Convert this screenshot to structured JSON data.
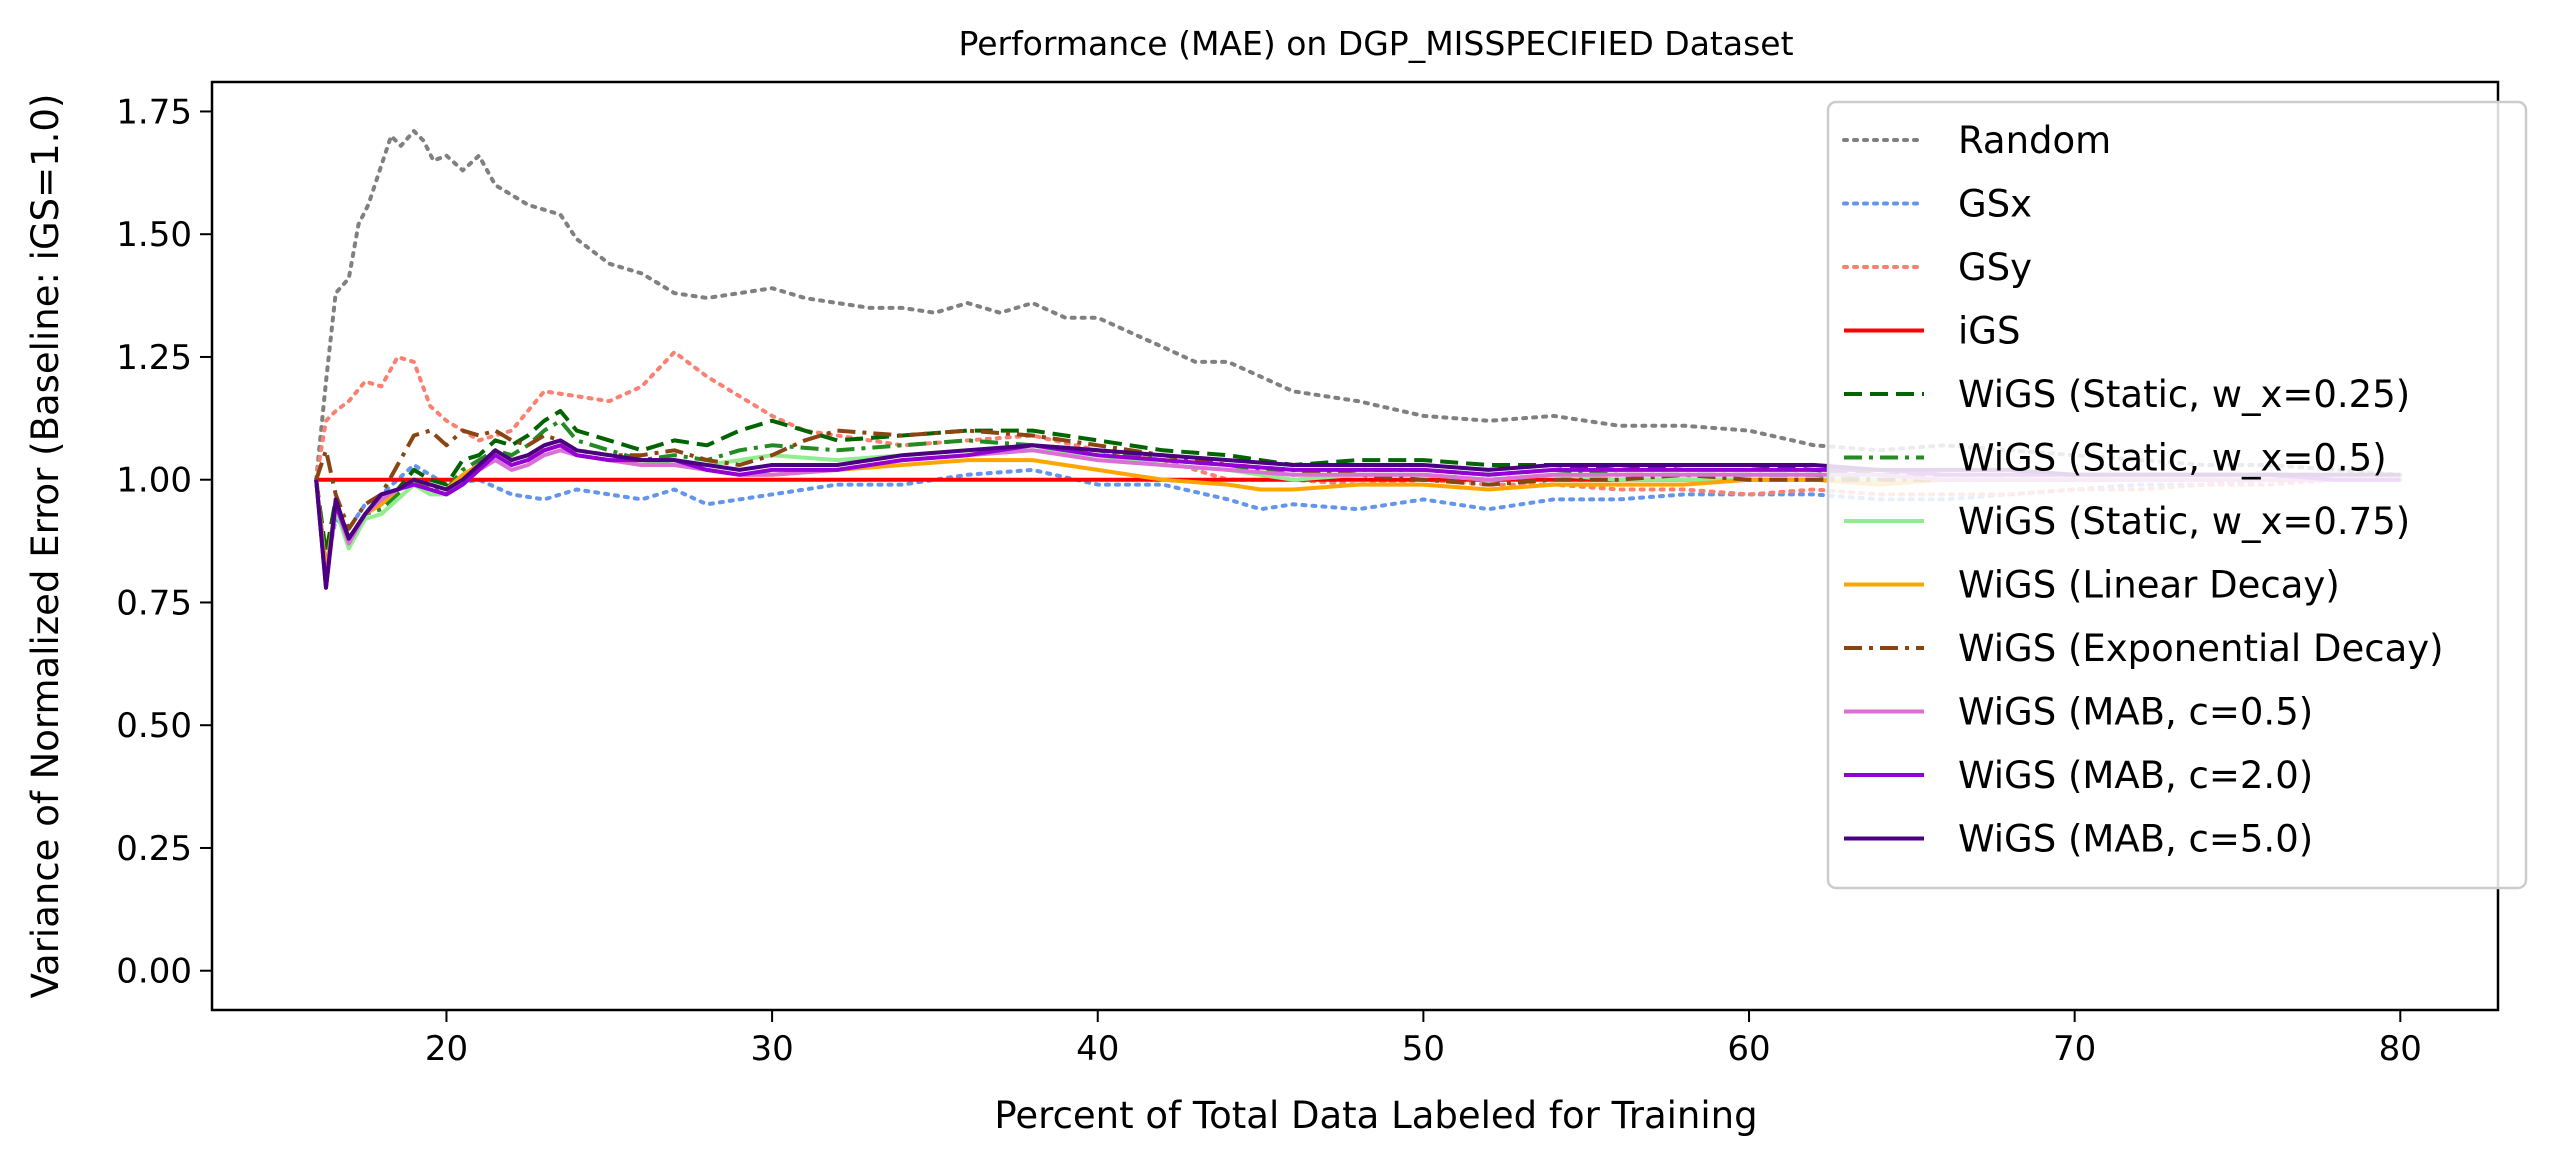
{
  "chart_data": {
    "type": "line",
    "title": "Performance (MAE) on DGP_MISSPECIFIED Dataset",
    "xlabel": "Percent of Total Data Labeled for Training",
    "ylabel": "Variance of Normalized Error (Baseline: iGS=1.0)",
    "xlim": [
      12.8,
      83.0
    ],
    "ylim": [
      -0.08,
      1.81
    ],
    "xticks": [
      20,
      30,
      40,
      50,
      60,
      70,
      80
    ],
    "xtick_labels": [
      "20",
      "30",
      "40",
      "50",
      "60",
      "70",
      "80"
    ],
    "yticks": [
      0.0,
      0.25,
      0.5,
      0.75,
      1.0,
      1.25,
      1.5,
      1.75
    ],
    "ytick_labels": [
      "0.00",
      "0.25",
      "0.50",
      "0.75",
      "1.00",
      "1.25",
      "1.50",
      "1.75"
    ],
    "grid": false,
    "legend_position": "top-right",
    "series": [
      {
        "name": "Random",
        "color": "#808080",
        "dash": "dotted",
        "x": [
          16,
          16.3,
          16.6,
          17,
          17.3,
          17.6,
          18,
          18.3,
          18.6,
          19,
          19.3,
          19.6,
          20,
          20.5,
          21,
          21.5,
          22,
          22.5,
          23,
          23.5,
          24,
          25,
          26,
          27,
          28,
          29,
          30,
          31,
          32,
          33,
          34,
          35,
          36,
          37,
          38,
          39,
          40,
          41,
          42,
          43,
          44,
          45,
          46,
          48,
          50,
          52,
          54,
          56,
          58,
          60,
          62,
          64,
          66,
          68,
          70,
          72,
          74,
          76,
          78,
          80
        ],
        "y": [
          1.0,
          1.2,
          1.38,
          1.41,
          1.52,
          1.56,
          1.64,
          1.7,
          1.68,
          1.71,
          1.69,
          1.65,
          1.66,
          1.63,
          1.66,
          1.6,
          1.58,
          1.56,
          1.55,
          1.54,
          1.49,
          1.44,
          1.42,
          1.38,
          1.37,
          1.38,
          1.39,
          1.37,
          1.36,
          1.35,
          1.35,
          1.34,
          1.36,
          1.34,
          1.36,
          1.33,
          1.33,
          1.3,
          1.27,
          1.24,
          1.24,
          1.21,
          1.18,
          1.16,
          1.13,
          1.12,
          1.13,
          1.11,
          1.11,
          1.1,
          1.07,
          1.06,
          1.07,
          1.06,
          1.05,
          1.04,
          1.03,
          1.03,
          1.02,
          1.01
        ]
      },
      {
        "name": "GSx",
        "color": "#6495ED",
        "dash": "dotted",
        "x": [
          16,
          16.3,
          16.6,
          17,
          17.5,
          18,
          18.5,
          19,
          19.5,
          20,
          21,
          22,
          23,
          24,
          25,
          26,
          27,
          28,
          29,
          30,
          32,
          34,
          36,
          38,
          40,
          42,
          44,
          45,
          46,
          48,
          50,
          52,
          54,
          56,
          58,
          60,
          62,
          64,
          66,
          68,
          70,
          72,
          74,
          76,
          78,
          80
        ],
        "y": [
          1.0,
          0.82,
          0.92,
          0.9,
          0.95,
          0.97,
          1.0,
          1.03,
          1.01,
          0.99,
          1.0,
          0.97,
          0.96,
          0.98,
          0.97,
          0.96,
          0.98,
          0.95,
          0.96,
          0.97,
          0.99,
          0.99,
          1.01,
          1.02,
          0.99,
          0.99,
          0.96,
          0.94,
          0.95,
          0.94,
          0.96,
          0.94,
          0.96,
          0.96,
          0.97,
          0.97,
          0.97,
          0.96,
          0.96,
          0.97,
          0.98,
          0.99,
          0.99,
          1.0,
          1.0,
          1.0
        ]
      },
      {
        "name": "GSy",
        "color": "#FA8072",
        "dash": "dotted",
        "x": [
          16,
          16.3,
          16.6,
          17,
          17.5,
          18,
          18.5,
          19,
          19.5,
          20,
          21,
          22,
          23,
          24,
          25,
          26,
          27,
          28,
          29,
          30,
          31,
          32,
          34,
          36,
          38,
          40,
          42,
          44,
          46,
          48,
          50,
          52,
          54,
          56,
          58,
          60,
          62,
          64,
          66,
          68,
          70,
          72,
          74,
          76,
          78,
          80
        ],
        "y": [
          1.0,
          1.12,
          1.14,
          1.16,
          1.2,
          1.19,
          1.25,
          1.24,
          1.15,
          1.12,
          1.08,
          1.1,
          1.18,
          1.17,
          1.16,
          1.19,
          1.26,
          1.21,
          1.17,
          1.13,
          1.1,
          1.09,
          1.07,
          1.08,
          1.09,
          1.06,
          1.04,
          1.0,
          1.0,
          0.99,
          1.0,
          0.99,
          0.99,
          0.98,
          0.98,
          0.97,
          0.98,
          0.97,
          0.97,
          0.97,
          0.98,
          0.98,
          0.99,
          0.99,
          1.0,
          1.0
        ]
      },
      {
        "name": "iGS",
        "color": "#FF0000",
        "dash": "solid",
        "x": [
          16,
          80
        ],
        "y": [
          1.0,
          1.0
        ]
      },
      {
        "name": "WiGS (Static, w_x=0.25)",
        "color": "#006400",
        "dash": "dashed",
        "x": [
          16,
          16.3,
          16.6,
          17,
          17.5,
          18,
          18.5,
          19,
          19.5,
          20,
          20.5,
          21,
          21.5,
          22,
          22.5,
          23,
          23.5,
          24,
          25,
          26,
          27,
          28,
          29,
          30,
          31,
          32,
          34,
          36,
          38,
          40,
          42,
          44,
          46,
          48,
          50,
          52,
          54,
          56,
          58,
          60,
          62,
          64,
          66,
          68,
          70,
          72,
          74,
          76,
          78,
          80
        ],
        "y": [
          1.0,
          0.85,
          0.96,
          0.88,
          0.93,
          0.95,
          0.98,
          1.02,
          1.0,
          0.99,
          1.04,
          1.05,
          1.08,
          1.07,
          1.09,
          1.12,
          1.14,
          1.1,
          1.08,
          1.06,
          1.08,
          1.07,
          1.1,
          1.12,
          1.1,
          1.08,
          1.09,
          1.1,
          1.1,
          1.08,
          1.06,
          1.05,
          1.03,
          1.04,
          1.04,
          1.03,
          1.03,
          1.02,
          1.03,
          1.03,
          1.02,
          1.01,
          1.01,
          1.01,
          1.01,
          1.01,
          1.01,
          1.01,
          1.01,
          1.01
        ]
      },
      {
        "name": "WiGS (Static, w_x=0.5)",
        "color": "#228B22",
        "dash": "dashdot",
        "x": [
          16,
          16.3,
          16.6,
          17,
          17.5,
          18,
          18.5,
          19,
          19.5,
          20,
          20.5,
          21,
          21.5,
          22,
          22.5,
          23,
          23.5,
          24,
          25,
          26,
          27,
          28,
          29,
          30,
          32,
          34,
          36,
          38,
          40,
          42,
          44,
          46,
          48,
          50,
          52,
          54,
          56,
          58,
          60,
          62,
          64,
          66,
          68,
          70,
          72,
          74,
          76,
          78,
          80
        ],
        "y": [
          1.0,
          0.82,
          0.95,
          0.87,
          0.93,
          0.94,
          0.97,
          1.0,
          0.98,
          0.98,
          1.02,
          1.04,
          1.06,
          1.05,
          1.07,
          1.1,
          1.12,
          1.08,
          1.06,
          1.04,
          1.05,
          1.04,
          1.06,
          1.07,
          1.06,
          1.07,
          1.08,
          1.07,
          1.06,
          1.04,
          1.03,
          1.01,
          1.02,
          1.02,
          1.01,
          1.02,
          1.01,
          1.01,
          1.01,
          1.01,
          1.0,
          1.0,
          1.0,
          1.0,
          1.0,
          1.0,
          1.0,
          1.0,
          1.0
        ]
      },
      {
        "name": "WiGS (Static, w_x=0.75)",
        "color": "#90EE90",
        "dash": "solid",
        "x": [
          16,
          16.3,
          16.6,
          17,
          17.5,
          18,
          18.5,
          19,
          19.5,
          20,
          20.5,
          21,
          21.5,
          22,
          22.5,
          23,
          23.5,
          24,
          25,
          26,
          27,
          28,
          29,
          30,
          32,
          34,
          36,
          38,
          40,
          42,
          44,
          46,
          48,
          50,
          52,
          54,
          56,
          58,
          60,
          62,
          64,
          66,
          68,
          70,
          72,
          74,
          76,
          78,
          80
        ],
        "y": [
          1.0,
          0.8,
          0.94,
          0.86,
          0.92,
          0.93,
          0.96,
          0.99,
          0.97,
          0.97,
          1.0,
          1.03,
          1.05,
          1.03,
          1.04,
          1.06,
          1.07,
          1.05,
          1.04,
          1.03,
          1.04,
          1.03,
          1.04,
          1.05,
          1.04,
          1.05,
          1.06,
          1.06,
          1.05,
          1.03,
          1.02,
          1.0,
          1.01,
          1.01,
          1.0,
          1.01,
          1.0,
          1.0,
          1.0,
          1.0,
          1.0,
          1.0,
          1.0,
          1.0,
          1.0,
          1.0,
          1.0,
          1.0,
          1.0
        ]
      },
      {
        "name": "WiGS (Linear Decay)",
        "color": "#FFA500",
        "dash": "solid",
        "x": [
          16,
          16.3,
          16.6,
          17,
          17.5,
          18,
          18.5,
          19,
          19.5,
          20,
          20.5,
          21,
          21.5,
          22,
          22.5,
          23,
          23.5,
          24,
          25,
          26,
          27,
          28,
          29,
          30,
          32,
          34,
          36,
          38,
          40,
          42,
          44,
          45,
          46,
          48,
          50,
          52,
          54,
          56,
          58,
          60,
          62,
          64,
          66,
          68,
          70,
          72,
          74,
          76,
          78,
          80
        ],
        "y": [
          1.0,
          0.81,
          0.95,
          0.88,
          0.93,
          0.95,
          0.98,
          1.0,
          0.99,
          0.98,
          1.01,
          1.03,
          1.06,
          1.04,
          1.05,
          1.06,
          1.07,
          1.05,
          1.04,
          1.03,
          1.03,
          1.02,
          1.01,
          1.01,
          1.02,
          1.03,
          1.04,
          1.04,
          1.02,
          1.0,
          0.99,
          0.98,
          0.98,
          0.99,
          0.99,
          0.98,
          0.99,
          0.99,
          0.99,
          1.0,
          1.0,
          0.99,
          1.0,
          1.0,
          1.0,
          1.0,
          1.0,
          1.0,
          1.0,
          1.0
        ]
      },
      {
        "name": "WiGS (Exponential Decay)",
        "color": "#8B4513",
        "dash": "dashdot",
        "x": [
          16,
          16.3,
          16.6,
          17,
          17.5,
          18,
          18.5,
          19,
          19.5,
          20,
          20.5,
          21,
          21.5,
          22,
          22.5,
          23,
          23.5,
          24,
          25,
          26,
          27,
          28,
          29,
          30,
          31,
          32,
          34,
          36,
          38,
          40,
          42,
          44,
          46,
          48,
          50,
          52,
          54,
          56,
          58,
          60,
          62,
          64,
          66,
          68,
          70,
          72,
          74,
          76,
          78,
          80
        ],
        "y": [
          1.0,
          1.06,
          0.97,
          0.9,
          0.95,
          0.97,
          1.03,
          1.09,
          1.1,
          1.07,
          1.1,
          1.09,
          1.1,
          1.08,
          1.07,
          1.09,
          1.08,
          1.06,
          1.05,
          1.05,
          1.06,
          1.04,
          1.03,
          1.05,
          1.08,
          1.1,
          1.09,
          1.1,
          1.09,
          1.07,
          1.05,
          1.03,
          1.02,
          1.01,
          1.0,
          0.99,
          1.0,
          1.0,
          1.01,
          1.0,
          1.0,
          1.0,
          1.0,
          1.0,
          1.0,
          1.0,
          1.0,
          1.0,
          1.0,
          1.0
        ]
      },
      {
        "name": "WiGS (MAB, c=0.5)",
        "color": "#DA70D6",
        "dash": "solid",
        "x": [
          16,
          16.3,
          16.6,
          17,
          17.5,
          18,
          18.5,
          19,
          19.5,
          20,
          20.5,
          21,
          21.5,
          22,
          22.5,
          23,
          23.5,
          24,
          25,
          26,
          27,
          28,
          29,
          30,
          32,
          34,
          36,
          38,
          40,
          42,
          44,
          46,
          48,
          50,
          52,
          54,
          56,
          58,
          60,
          62,
          64,
          66,
          68,
          70,
          72,
          74,
          76,
          78,
          80
        ],
        "y": [
          1.0,
          0.79,
          0.95,
          0.87,
          0.93,
          0.96,
          0.98,
          0.99,
          0.98,
          0.97,
          0.99,
          1.02,
          1.04,
          1.02,
          1.03,
          1.05,
          1.06,
          1.05,
          1.04,
          1.03,
          1.03,
          1.02,
          1.01,
          1.01,
          1.02,
          1.04,
          1.05,
          1.06,
          1.04,
          1.03,
          1.02,
          1.01,
          1.01,
          1.01,
          1.0,
          1.01,
          1.01,
          1.01,
          1.01,
          1.01,
          1.01,
          1.0,
          1.0,
          1.0,
          1.0,
          1.0,
          1.0,
          1.0,
          1.0
        ]
      },
      {
        "name": "WiGS (MAB, c=2.0)",
        "color": "#9400D3",
        "dash": "solid",
        "x": [
          16,
          16.3,
          16.6,
          17,
          17.5,
          18,
          18.5,
          19,
          19.5,
          20,
          20.5,
          21,
          21.5,
          22,
          22.5,
          23,
          23.5,
          24,
          25,
          26,
          27,
          28,
          29,
          30,
          32,
          34,
          36,
          38,
          40,
          42,
          44,
          46,
          48,
          50,
          52,
          54,
          56,
          58,
          60,
          62,
          64,
          66,
          68,
          70,
          72,
          74,
          76,
          78,
          80
        ],
        "y": [
          1.0,
          0.78,
          0.95,
          0.88,
          0.93,
          0.97,
          0.98,
          0.99,
          0.98,
          0.97,
          0.99,
          1.02,
          1.05,
          1.03,
          1.04,
          1.06,
          1.07,
          1.05,
          1.04,
          1.04,
          1.04,
          1.02,
          1.01,
          1.02,
          1.02,
          1.04,
          1.05,
          1.07,
          1.05,
          1.04,
          1.03,
          1.02,
          1.02,
          1.02,
          1.01,
          1.02,
          1.02,
          1.02,
          1.02,
          1.02,
          1.02,
          1.01,
          1.01,
          1.01,
          1.01,
          1.01,
          1.01,
          1.0,
          1.0
        ]
      },
      {
        "name": "WiGS (MAB, c=5.0)",
        "color": "#4B0082",
        "dash": "solid",
        "x": [
          16,
          16.3,
          16.6,
          17,
          17.5,
          18,
          18.5,
          19,
          19.5,
          20,
          20.5,
          21,
          21.5,
          22,
          22.5,
          23,
          23.5,
          24,
          25,
          26,
          27,
          28,
          29,
          30,
          32,
          34,
          36,
          38,
          40,
          42,
          44,
          46,
          48,
          50,
          52,
          54,
          56,
          58,
          60,
          62,
          64,
          66,
          68,
          70,
          72,
          74,
          76,
          78,
          80
        ],
        "y": [
          1.0,
          0.78,
          0.96,
          0.88,
          0.93,
          0.97,
          0.98,
          1.0,
          0.99,
          0.98,
          1.0,
          1.03,
          1.06,
          1.04,
          1.05,
          1.07,
          1.08,
          1.06,
          1.05,
          1.04,
          1.04,
          1.03,
          1.02,
          1.03,
          1.03,
          1.05,
          1.06,
          1.07,
          1.06,
          1.05,
          1.04,
          1.03,
          1.03,
          1.03,
          1.02,
          1.03,
          1.03,
          1.03,
          1.03,
          1.03,
          1.02,
          1.02,
          1.02,
          1.01,
          1.01,
          1.01,
          1.01,
          1.01,
          1.01
        ]
      }
    ]
  }
}
